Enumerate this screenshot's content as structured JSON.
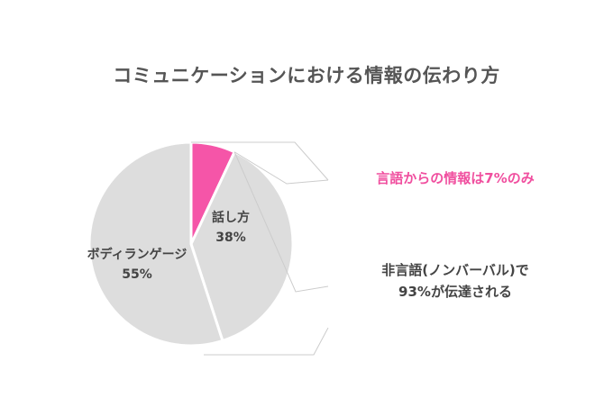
{
  "chart_data": {
    "type": "pie",
    "title": "コミュニケーションにおける情報の伝わり方",
    "slices": [
      {
        "label": "言語",
        "value": 7,
        "color": "#f555a8",
        "inner_label": "",
        "inner_pct": ""
      },
      {
        "label": "話し方",
        "value": 38,
        "color": "#dddddd",
        "inner_label": "話し方",
        "inner_pct": "38%"
      },
      {
        "label": "ボディランゲージ",
        "value": 55,
        "color": "#dddddd",
        "inner_label": "ボディランゲージ",
        "inner_pct": "55%"
      }
    ],
    "annotations": {
      "verbal": "言語からの情報は7%のみ",
      "nonverbal_line1": "非言語(ノンバーバル)で",
      "nonverbal_line2": "93%が伝達される"
    },
    "colors": {
      "highlight": "#f04f9f",
      "slice": "#dddddd",
      "text": "#444444",
      "bracket": "#cccccc"
    }
  }
}
